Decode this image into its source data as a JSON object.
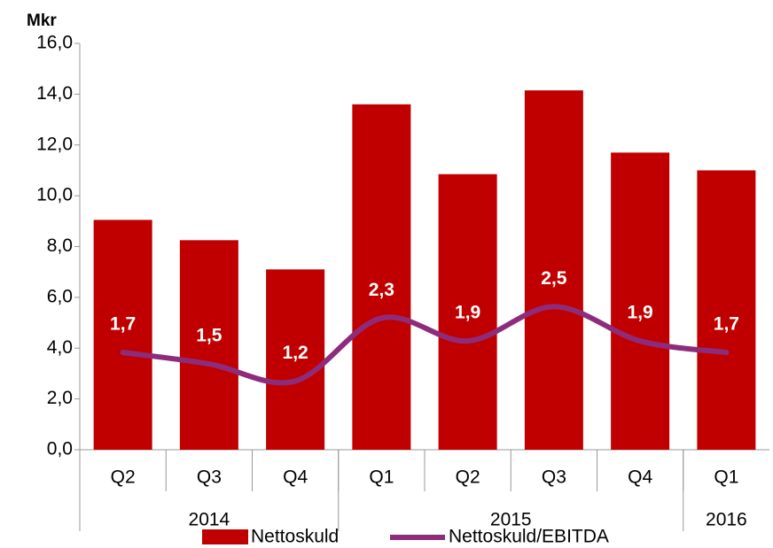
{
  "chart_data": {
    "type": "bar-line",
    "y_label": "Mkr",
    "categories": [
      "Q2",
      "Q3",
      "Q4",
      "Q1",
      "Q2",
      "Q3",
      "Q4",
      "Q1"
    ],
    "groups": [
      {
        "name": "2014",
        "count": 3
      },
      {
        "name": "2015",
        "count": 4
      },
      {
        "name": "2016",
        "count": 1
      }
    ],
    "series": [
      {
        "name": "Nettoskuld",
        "type": "bar",
        "color": "#c00000",
        "values": [
          9.05,
          8.25,
          7.1,
          13.6,
          10.85,
          14.15,
          11.7,
          11.0
        ]
      },
      {
        "name": "Nettoskuld/EBITDA",
        "type": "line",
        "axis": "y2",
        "color": "#8e2c7c",
        "values": [
          1.7,
          1.5,
          1.2,
          2.3,
          1.9,
          2.5,
          1.9,
          1.7
        ],
        "value_labels": [
          "1,7",
          "1,5",
          "1,2",
          "2,3",
          "1,9",
          "2,5",
          "1,9",
          "1,7"
        ]
      }
    ],
    "ylim": [
      0,
      16
    ],
    "yticks": [
      {
        "value": 0,
        "label": "0,0"
      },
      {
        "value": 2,
        "label": "2,0"
      },
      {
        "value": 4,
        "label": "4,0"
      },
      {
        "value": 6,
        "label": "6,0"
      },
      {
        "value": 8,
        "label": "8,0"
      },
      {
        "value": 10,
        "label": "10,0"
      },
      {
        "value": 12,
        "label": "12,0"
      },
      {
        "value": 14,
        "label": "14,0"
      },
      {
        "value": 16,
        "label": "16,0"
      }
    ],
    "y2lim": [
      0,
      7.1
    ],
    "legend": "bottom"
  }
}
